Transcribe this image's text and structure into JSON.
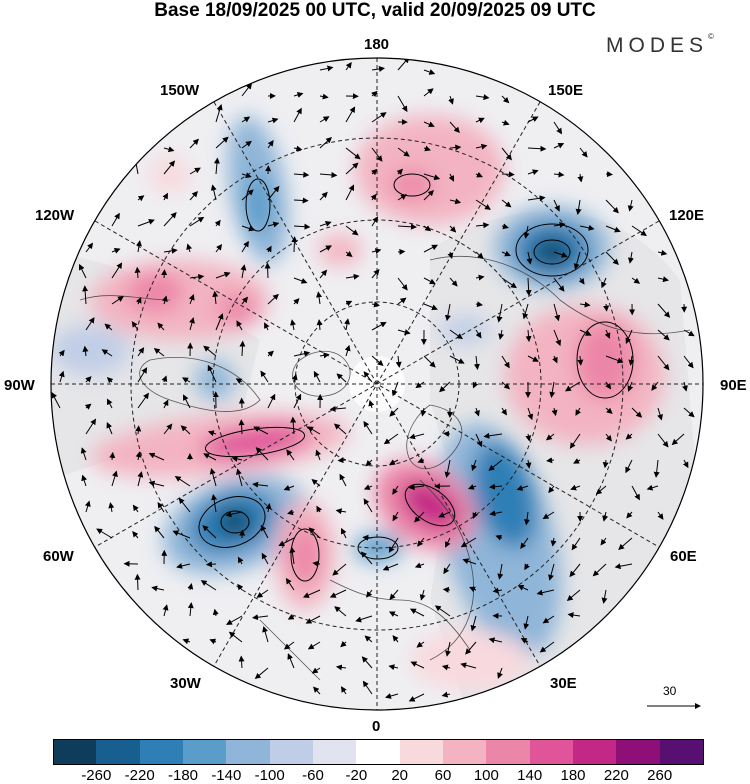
{
  "title": "Base 18/09/2025 00 UTC, valid 20/09/2025 09 UTC",
  "brand": "MODES",
  "brand_mark": "©",
  "map": {
    "projection": "north-polar-stereographic",
    "longitude_labels": {
      "top": "180",
      "bottom": "0",
      "left": "90W",
      "right": "90E",
      "upper_left": "150W",
      "upper_right": "150E",
      "mid_upper_left": "120W",
      "mid_upper_right": "120E",
      "mid_lower_left": "60W",
      "mid_lower_right": "60E",
      "lower_left": "30W",
      "lower_right": "30E"
    },
    "wind_reference_label": "30"
  },
  "colorbar": {
    "ticks": [
      "-260",
      "-220",
      "-180",
      "-140",
      "-100",
      "-60",
      "-20",
      "20",
      "60",
      "100",
      "140",
      "180",
      "220",
      "260"
    ],
    "colors": [
      "#0e3d5c",
      "#175f8e",
      "#2f7fb6",
      "#5a9dcb",
      "#8fb5d8",
      "#c0cde6",
      "#e2e3f1",
      "#ffffff",
      "#f8d9de",
      "#f3b3c1",
      "#ec86a8",
      "#e0559a",
      "#c42886",
      "#8e0f78",
      "#571072"
    ]
  }
}
